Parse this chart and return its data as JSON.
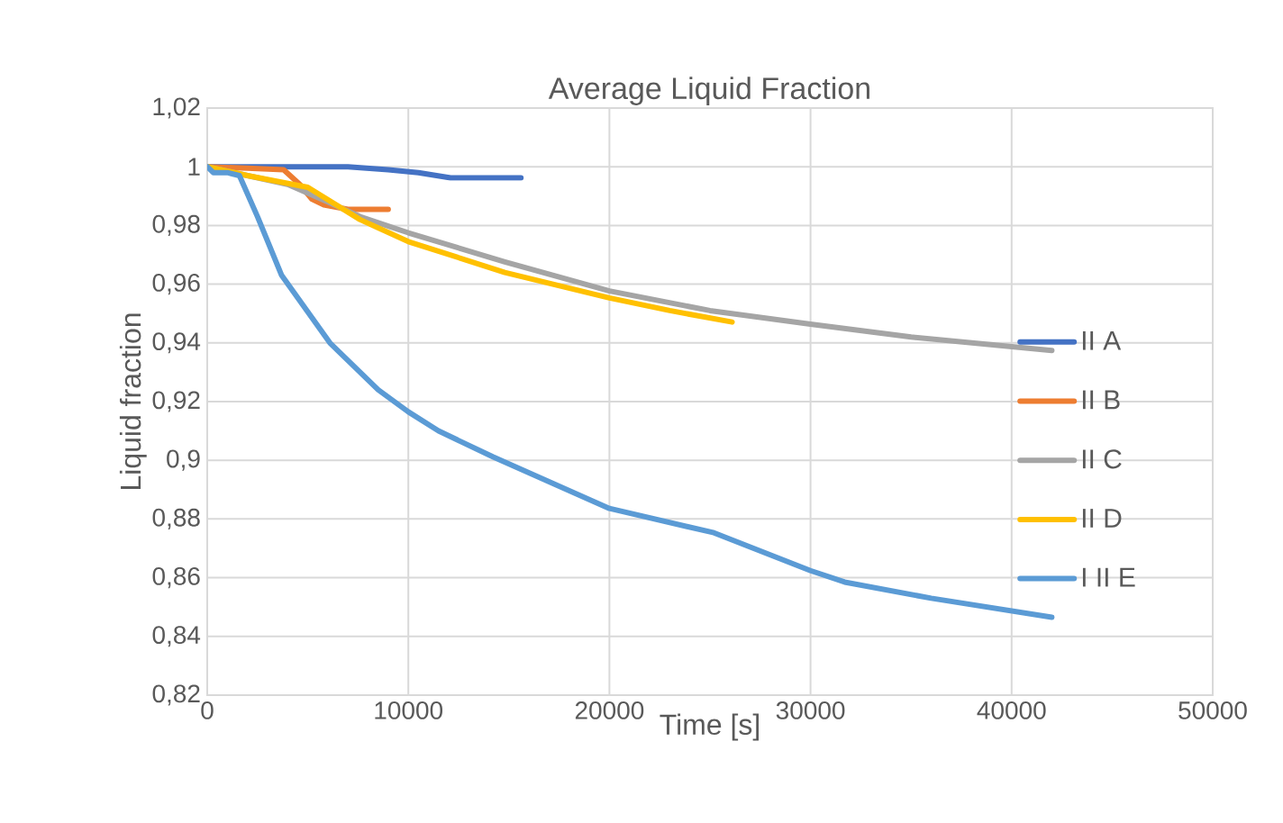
{
  "chart_data": {
    "type": "line",
    "title": "Average Liquid Fraction",
    "xlabel": "Time [s]",
    "ylabel": "Liquid fraction",
    "xlim": [
      0,
      50000
    ],
    "xticks": [
      0,
      10000,
      20000,
      30000,
      40000,
      50000
    ],
    "ylim": [
      0.82,
      1.02
    ],
    "yticks": [
      {
        "value": 0.82,
        "label": "0,82"
      },
      {
        "value": 0.84,
        "label": "0,84"
      },
      {
        "value": 0.86,
        "label": "0,86"
      },
      {
        "value": 0.88,
        "label": "0,88"
      },
      {
        "value": 0.9,
        "label": "0,9"
      },
      {
        "value": 0.92,
        "label": "0,92"
      },
      {
        "value": 0.94,
        "label": "0,94"
      },
      {
        "value": 0.96,
        "label": "0,96"
      },
      {
        "value": 0.98,
        "label": "0,98"
      },
      {
        "value": 1,
        "label": "1"
      },
      {
        "value": 1.02,
        "label": "1,02"
      }
    ],
    "grid": true,
    "legend": "right",
    "marker": "none",
    "line_style": "solid",
    "series": [
      {
        "name": "II A",
        "color": "#4472c4",
        "x": [
          0,
          4000,
          7000,
          9000,
          10500,
          12100,
          15600
        ],
        "values": [
          1.0,
          1.0,
          1.0,
          0.999,
          0.998,
          0.9962,
          0.9962
        ]
      },
      {
        "name": "II B",
        "color": "#ed7d31",
        "x": [
          0,
          2000,
          3800,
          4600,
          5200,
          5800,
          7000,
          9000
        ],
        "values": [
          1.0,
          0.9995,
          0.999,
          0.994,
          0.989,
          0.987,
          0.9855,
          0.9855
        ]
      },
      {
        "name": "II C",
        "color": "#a5a5a5",
        "x": [
          0,
          2000,
          4000,
          6000,
          7600,
          10000,
          14800,
          20000,
          25000,
          30000,
          35000,
          42000
        ],
        "values": [
          1.0,
          0.997,
          0.994,
          0.988,
          0.983,
          0.9775,
          0.9676,
          0.9577,
          0.951,
          0.9464,
          0.942,
          0.9374
        ]
      },
      {
        "name": "II D",
        "color": "#ffc000",
        "x": [
          0,
          2000,
          5000,
          7600,
          10000,
          14800,
          20000,
          23000,
          26100
        ],
        "values": [
          1.0,
          0.997,
          0.993,
          0.982,
          0.9745,
          0.964,
          0.9553,
          0.951,
          0.9471
        ]
      },
      {
        "name": "I II E",
        "color": "#5b9bd5",
        "x": [
          0,
          300,
          1000,
          1600,
          2500,
          3700,
          6100,
          8500,
          10000,
          11500,
          14200,
          20000,
          25200,
          30000,
          31700,
          36000,
          42000
        ],
        "values": [
          1.0,
          0.998,
          0.998,
          0.997,
          0.983,
          0.963,
          0.94,
          0.924,
          0.9165,
          0.91,
          0.9012,
          0.8836,
          0.8753,
          0.8624,
          0.8585,
          0.853,
          0.8465
        ]
      }
    ]
  }
}
